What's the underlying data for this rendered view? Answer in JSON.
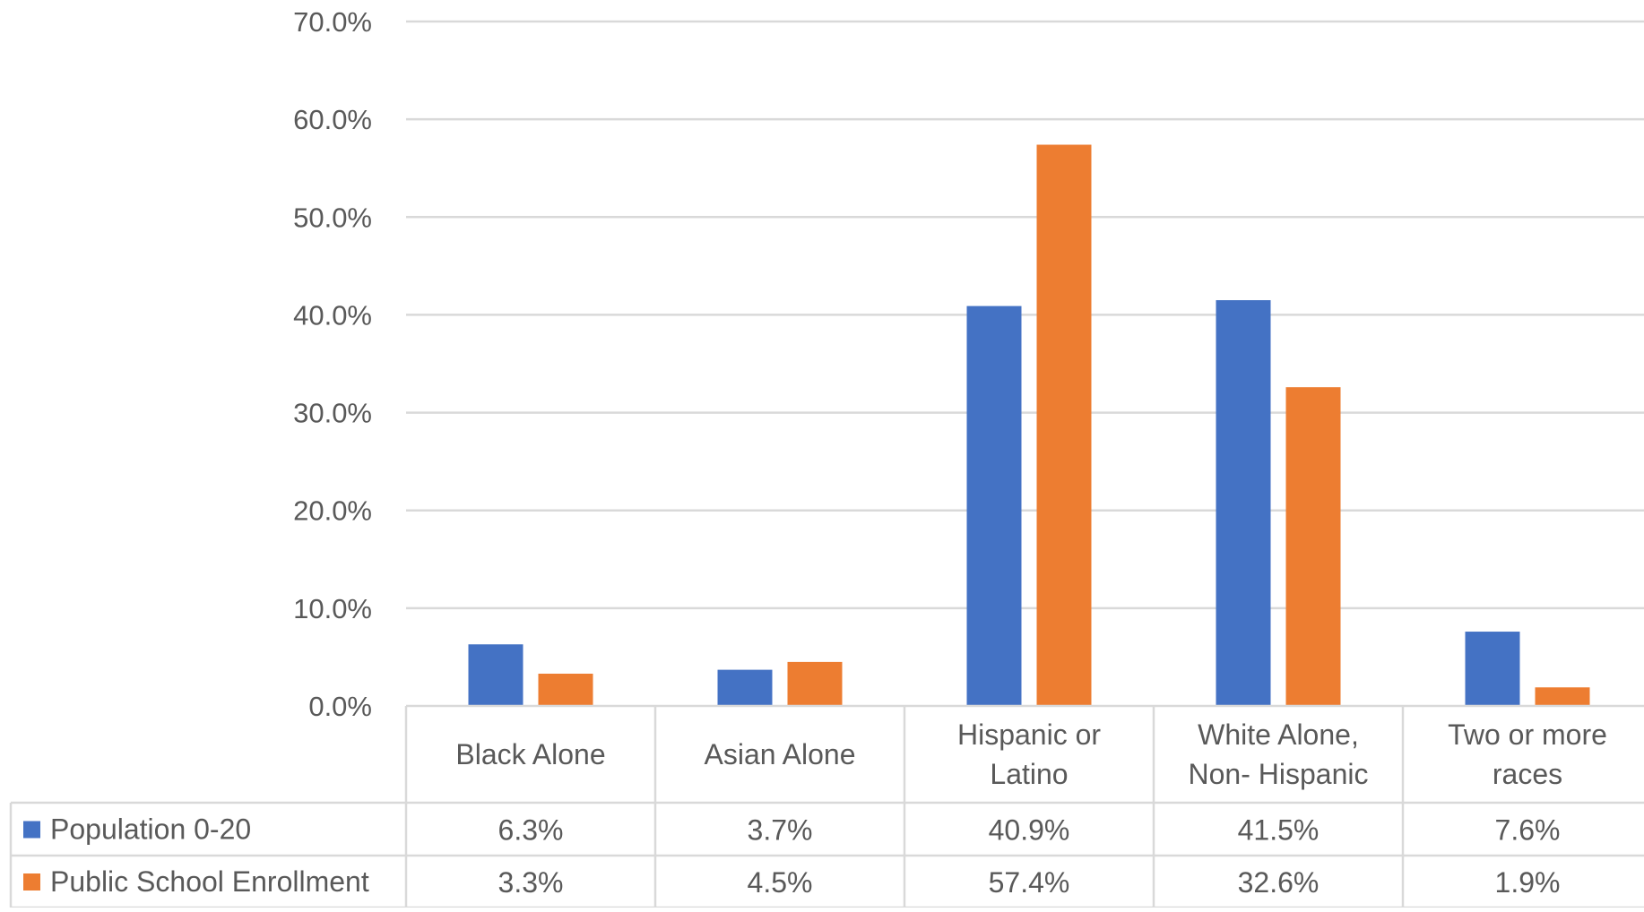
{
  "chart_data": {
    "type": "bar",
    "categories": [
      [
        "Black Alone"
      ],
      [
        "Asian Alone"
      ],
      [
        "Hispanic or",
        "Latino"
      ],
      [
        "White Alone,",
        "Non- Hispanic"
      ],
      [
        "Two or more",
        "races"
      ]
    ],
    "series": [
      {
        "name": "Population 0-20",
        "color": "#4472C4",
        "values": [
          6.3,
          3.7,
          40.9,
          41.5,
          7.6
        ],
        "labels": [
          "6.3%",
          "3.7%",
          "40.9%",
          "41.5%",
          "7.6%"
        ]
      },
      {
        "name": "Public School Enrollment",
        "color": "#ED7D31",
        "values": [
          3.3,
          4.5,
          57.4,
          32.6,
          1.9
        ],
        "labels": [
          "3.3%",
          "4.5%",
          "57.4%",
          "32.6%",
          "1.9%"
        ]
      }
    ],
    "ylim": [
      0,
      70
    ],
    "yticks": [
      "0.0%",
      "10.0%",
      "20.0%",
      "30.0%",
      "40.0%",
      "50.0%",
      "60.0%",
      "70.0%"
    ],
    "grid": true,
    "legend": "data-table",
    "gridColor": "#d9d9d9",
    "tableBorderColor": "#d9d9d9"
  }
}
